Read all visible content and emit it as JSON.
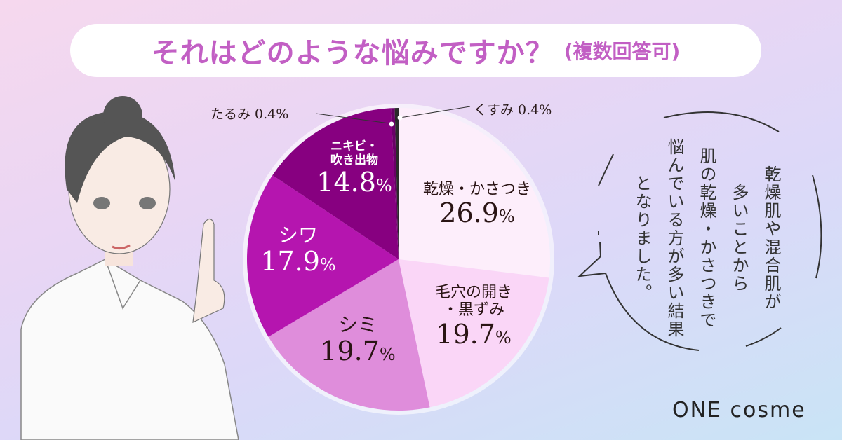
{
  "title": {
    "main": "それはどのような悩みですか？",
    "sub": "(複数回答可)"
  },
  "chart_data": {
    "type": "pie",
    "title": "それはどのような悩みですか？(複数回答可)",
    "unit": "%",
    "slices": [
      {
        "label": "乾燥・かさつき",
        "value": 26.9,
        "color": "#fdeefb",
        "text_color": "#2a1414"
      },
      {
        "label": "毛穴の開き・黒ずみ",
        "value": 19.7,
        "color": "#fad6f7",
        "text_color": "#2a1414"
      },
      {
        "label": "シミ",
        "value": 19.7,
        "color": "#df8ddb",
        "text_color": "#2a1414"
      },
      {
        "label": "シワ",
        "value": 17.9,
        "color": "#b515af",
        "text_color": "#ffffff"
      },
      {
        "label": "ニキビ・吹き出物",
        "value": 14.8,
        "color": "#870080",
        "text_color": "#ffffff"
      },
      {
        "label": "たるみ",
        "value": 0.4,
        "color": "#6a0068",
        "text_color": "#2a1414"
      },
      {
        "label": "くすみ",
        "value": 0.4,
        "color": "#2b2b2b",
        "text_color": "#2a1414"
      }
    ],
    "display": {
      "dry_name": "乾燥・かさつき",
      "dry_value": "26.9",
      "pores_name1": "毛穴の開き",
      "pores_name2": "・黒ずみ",
      "pores_value": "19.7",
      "spots_name": "シミ",
      "spots_value": "19.7",
      "wrinkles_name": "シワ",
      "wrinkles_value": "17.9",
      "acne_name1": "ニキビ・",
      "acne_name2": "吹き出物",
      "acne_value": "14.8",
      "sagging": "たるみ 0.4%",
      "dullness": "くすみ 0.4%",
      "percent": "%"
    }
  },
  "bubble": {
    "lines": [
      "乾燥肌や混合肌が",
      "多いことから",
      "肌の乾燥・かさつきで",
      "悩んでいる方が多い結果",
      "となりました。"
    ]
  },
  "logo": "ONE cosme"
}
